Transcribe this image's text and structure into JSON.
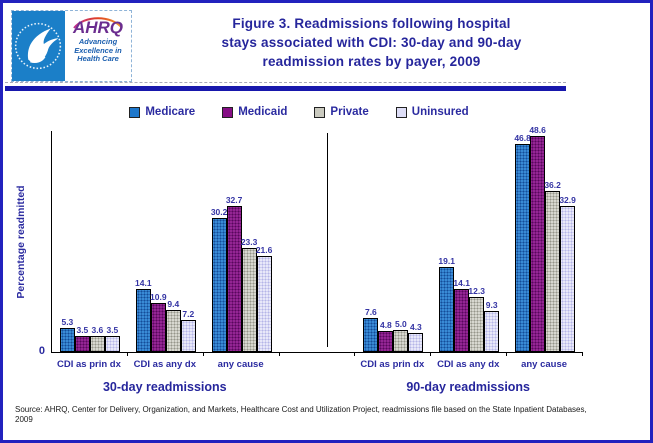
{
  "header": {
    "title_lines": [
      "Figure 3. Readmissions following hospital",
      "stays associated with CDI: 30-day and 90-day",
      "readmission rates by payer, 2009"
    ],
    "logo": {
      "ahrq": "AHRQ",
      "tagline_lines": [
        "Advancing",
        "Excellence in",
        "Health Care"
      ]
    }
  },
  "chart_data": {
    "type": "bar",
    "ylabel": "Percentage readmitted",
    "y_axis_tick": "0",
    "ylim": [
      0,
      50
    ],
    "grid": false,
    "legend_position": "top",
    "categories": [
      "CDI as prin dx",
      "CDI as any dx",
      "any cause"
    ],
    "panels": [
      {
        "label": "30-day readmissions",
        "series": [
          {
            "name": "Medicare",
            "color": "#1E78CC",
            "values": [
              "5.3",
              "14.1",
              "30.2"
            ]
          },
          {
            "name": "Medicaid",
            "color": "#850E85",
            "values": [
              "3.5",
              "10.9",
              "32.7"
            ]
          },
          {
            "name": "Private",
            "color": "#CACABF",
            "values": [
              "3.6",
              "9.4",
              "23.3"
            ]
          },
          {
            "name": "Uninsured",
            "color": "#DEDEF7",
            "values": [
              "3.5",
              "7.2",
              "21.6"
            ]
          }
        ]
      },
      {
        "label": "90-day readmissions",
        "series": [
          {
            "name": "Medicare",
            "color": "#1E78CC",
            "values": [
              "7.6",
              "19.1",
              "46.8"
            ]
          },
          {
            "name": "Medicaid",
            "color": "#850E85",
            "values": [
              "4.8",
              "14.1",
              "48.6"
            ]
          },
          {
            "name": "Private",
            "color": "#CACABF",
            "values": [
              "5.0",
              "12.3",
              "36.2"
            ]
          },
          {
            "name": "Uninsured",
            "color": "#DEDEF7",
            "values": [
              "4.3",
              "9.3",
              "32.9"
            ]
          }
        ]
      }
    ]
  },
  "source": {
    "text": "Source: AHRQ, Center for Delivery, Organization, and Markets, Healthcare Cost and Utilization Project, readmissions file based on the State Inpatient Databases, 2009"
  }
}
